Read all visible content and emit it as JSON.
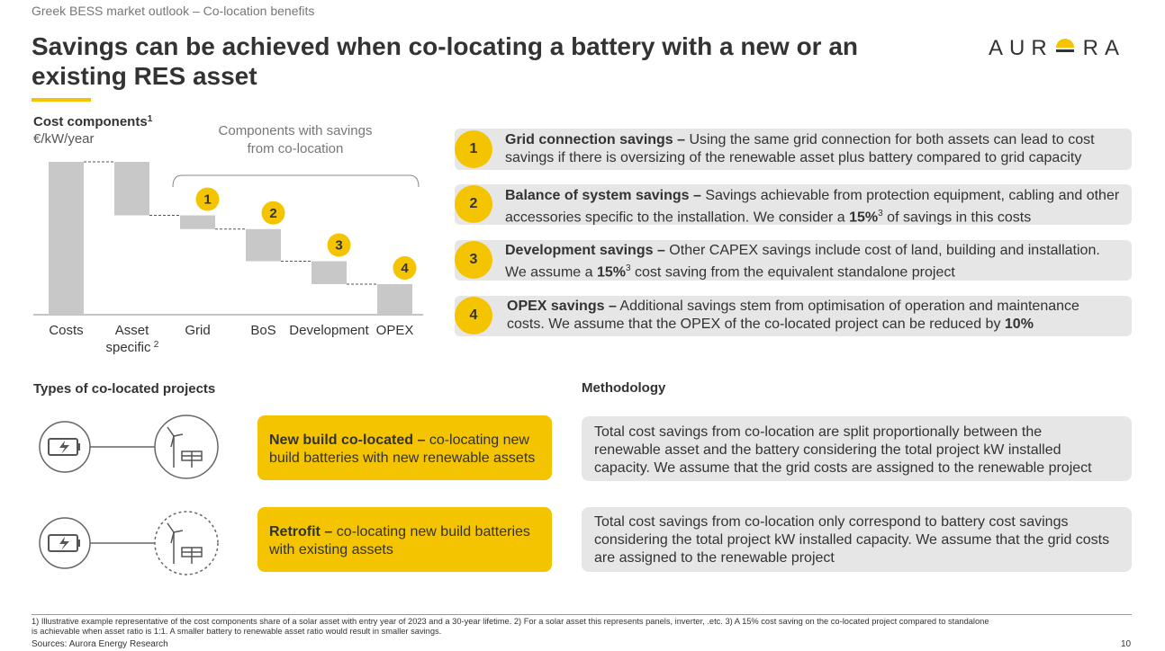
{
  "header": {
    "breadcrumb": "Greek BESS market outlook – Co-location benefits",
    "title_line1": "Savings can be achieved when co-locating a battery with a new or an",
    "title_line2": "existing RES asset",
    "logo_left": "AUR",
    "logo_right": "RA"
  },
  "chart_data": {
    "type": "waterfall",
    "title": "Cost components",
    "title_footnote": "1",
    "subtitle": "€/kW/year",
    "categories": [
      "Costs",
      "Asset",
      "Grid",
      "BoS",
      "Development",
      "OPEX"
    ],
    "asset_second_line": "specific",
    "asset_footnote": "2",
    "values": [
      100,
      -35,
      -9,
      -21,
      -15,
      -20
    ],
    "color": "#c8c8c8",
    "bracket_label_line1": "Components with savings",
    "bracket_label_line2": "from co-location",
    "markers": [
      "1",
      "2",
      "3",
      "4"
    ]
  },
  "savings": [
    {
      "number": "1",
      "title": "Grid connection savings –",
      "line1": "Using the same grid connection for both assets can lead to cost",
      "line2": "savings if there is oversizing of the renewable asset plus battery compared to grid capacity"
    },
    {
      "number": "2",
      "title": "Balance of system savings –",
      "line1": "Savings achievable from protection equipment, cabling and other",
      "line2a": "accessories specific to the installation. We consider a",
      "bold": "15%",
      "sup": "3",
      "line2b": "of savings in this costs"
    },
    {
      "number": "3",
      "title": "Development savings –",
      "line1": "Other CAPEX savings include cost of land, building and installation.",
      "line2a": "We assume a",
      "bold": "15%",
      "sup": "3",
      "line2b": "cost saving from the equivalent standalone project"
    },
    {
      "number": "4",
      "title": "OPEX savings –",
      "line1": "Additional savings stem from optimisation of operation and maintenance",
      "line2a": "costs. We assume that the OPEX of the co-located project can be reduced by",
      "bold": "10%"
    }
  ],
  "types": {
    "heading": "Types of co-located projects",
    "new_build": {
      "title": "New build co-located –",
      "line1": "co-locating new",
      "line2": "build batteries with new renewable assets"
    },
    "retrofit": {
      "title": "Retrofit –",
      "line1": "co-locating new build batteries",
      "line2": "with existing assets"
    }
  },
  "methodology": {
    "heading": "Methodology",
    "box1": [
      "Total cost savings from co-location are split proportionally between the",
      "renewable asset and the battery considering the total project kW installed",
      "capacity.  We assume that the grid costs are assigned to the renewable project"
    ],
    "box2": [
      "Total cost savings from co-location only correspond to battery cost savings",
      "considering the total project kW installed capacity. We assume that the grid costs",
      "are assigned to the renewable project"
    ]
  },
  "footer": {
    "note1": "1) Illustrative example representative of the cost components share of a solar asset  with entry year of 2023 and a 30-year lifetime. 2) For a solar asset this represents panels, inverter, .etc. 3) A 15% cost saving on the co-located project compared to standalone",
    "note2": "is achievable when asset ratio is 1:1. A smaller battery to renewable asset ratio would result in smaller savings.",
    "sources": "Sources: Aurora Energy Research",
    "page": "10"
  }
}
